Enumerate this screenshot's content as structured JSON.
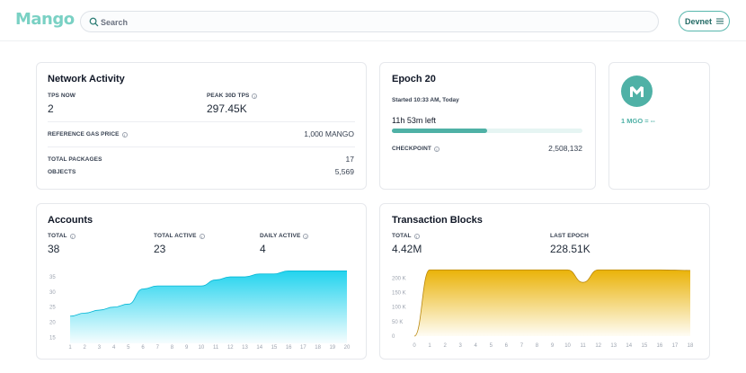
{
  "app": {
    "logo": "Mango"
  },
  "search": {
    "placeholder": "Search"
  },
  "network_button": {
    "label": "Devnet"
  },
  "network_activity": {
    "title": "Network Activity",
    "tps_now_label": "TPS NOW",
    "tps_now_value": "2",
    "peak_tps_label": "PEAK 30D TPS",
    "peak_tps_value": "297.45K",
    "gas_label": "REFERENCE GAS PRICE",
    "gas_value": "1,000 MANGO",
    "packages_label": "TOTAL PACKAGES",
    "packages_value": "17",
    "objects_label": "OBJECTS",
    "objects_value": "5,569"
  },
  "epoch": {
    "title": "Epoch 20",
    "started": "Started 10:33 AM, Today",
    "time_left": "11h 53m left",
    "progress": 0.5,
    "checkpoint_label": "CHECKPOINT",
    "checkpoint_value": "2,508,132"
  },
  "coin": {
    "price": "1 MGO = --",
    "icon": "mango-m-icon"
  },
  "accounts": {
    "title": "Accounts",
    "total_label": "TOTAL",
    "total_value": "38",
    "active_label": "TOTAL ACTIVE",
    "active_value": "23",
    "daily_label": "DAILY ACTIVE",
    "daily_value": "4"
  },
  "transactions": {
    "title": "Transaction Blocks",
    "total_label": "TOTAL",
    "total_value": "4.42M",
    "last_epoch_label": "LAST EPOCH",
    "last_epoch_value": "228.51K"
  },
  "colors": {
    "accent": "#4fb1a6",
    "cyan": "#22d3ee",
    "gold": "#eab308"
  },
  "chart_data": [
    {
      "type": "area",
      "x": [
        1,
        2,
        3,
        4,
        5,
        6,
        7,
        8,
        9,
        10,
        11,
        12,
        13,
        14,
        15,
        16,
        17,
        18,
        19,
        20
      ],
      "x_tick_labels": [
        "1",
        "2",
        "3",
        "4",
        "5",
        "6",
        "7",
        "8",
        "9",
        "10",
        "11",
        "12",
        "13",
        "14",
        "15",
        "16",
        "17",
        "18",
        "19",
        "20"
      ],
      "y_tick_labels": [
        "35",
        "30",
        "25",
        "20",
        "15"
      ],
      "ylim": [
        13,
        38
      ],
      "series": [
        {
          "values": [
            22,
            23,
            24,
            25,
            26,
            31,
            32,
            32,
            32,
            32,
            34,
            35,
            35,
            36,
            36,
            37,
            37,
            37,
            37,
            37
          ]
        }
      ],
      "color": "#22d3ee"
    },
    {
      "type": "area",
      "x": [
        0,
        1,
        2,
        3,
        4,
        5,
        6,
        7,
        8,
        9,
        10,
        11,
        12,
        13,
        14,
        15,
        16,
        17,
        18
      ],
      "x_tick_labels": [
        "0",
        "1",
        "2",
        "3",
        "4",
        "5",
        "6",
        "7",
        "8",
        "9",
        "10",
        "11",
        "12",
        "13",
        "14",
        "15",
        "16",
        "17",
        "18"
      ],
      "y_tick_labels": [
        "200 K",
        "150 K",
        "100 K",
        "50 K",
        "0"
      ],
      "ylim": [
        0,
        235000
      ],
      "series": [
        {
          "values": [
            0,
            228000,
            228000,
            228000,
            228000,
            228000,
            228000,
            228000,
            228000,
            228000,
            228000,
            185000,
            228000,
            228000,
            228000,
            228000,
            228000,
            227000,
            226000
          ]
        }
      ],
      "color": "#eab308"
    }
  ]
}
